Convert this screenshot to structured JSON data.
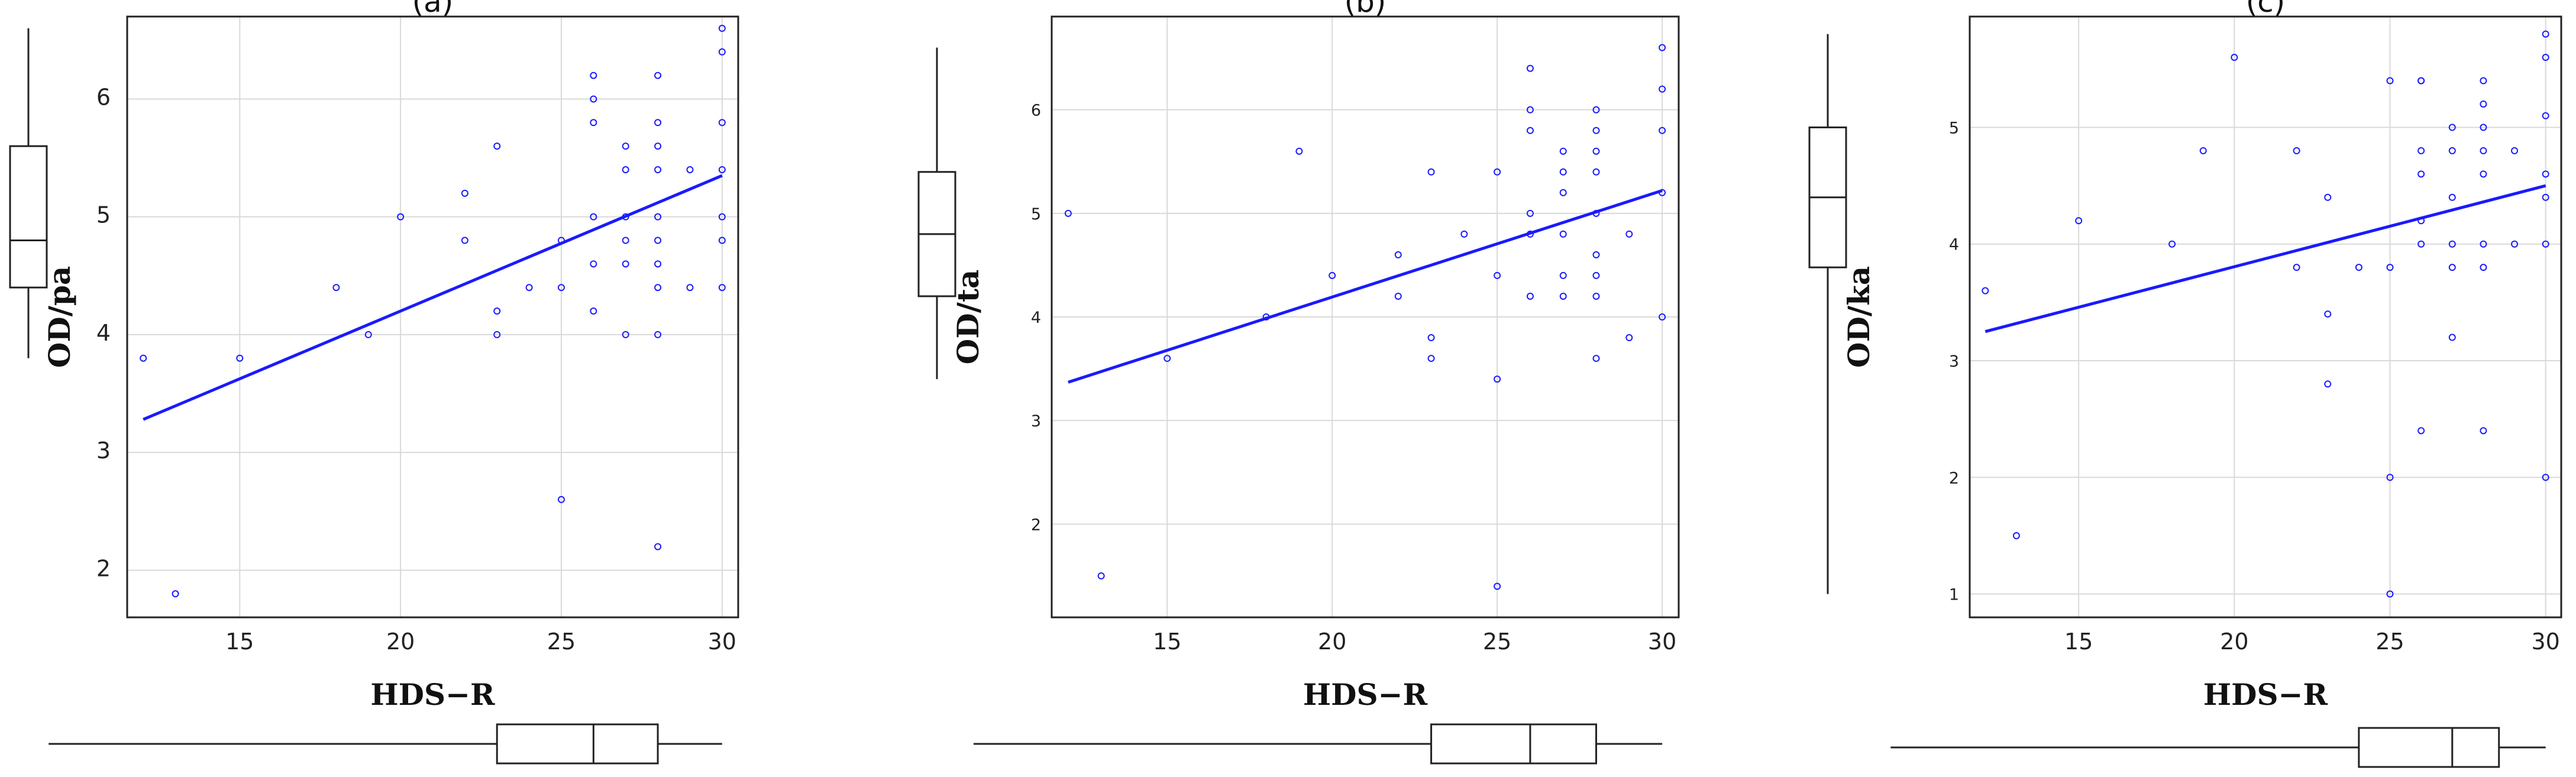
{
  "chart_data": [
    {
      "type": "scatter",
      "title": "(a)",
      "xlabel": "HDS−R",
      "ylabel": "OD/pa",
      "xlim": [
        11.5,
        30.5
      ],
      "ylim": [
        1.6,
        6.7
      ],
      "xticks": [
        15,
        20,
        25,
        30
      ],
      "yticks": [
        2,
        3,
        4,
        5,
        6
      ],
      "points": [
        [
          12,
          3.8
        ],
        [
          13,
          1.8
        ],
        [
          15,
          3.8
        ],
        [
          18,
          4.4
        ],
        [
          19,
          4.0
        ],
        [
          20,
          5.0
        ],
        [
          22,
          5.2
        ],
        [
          22,
          4.8
        ],
        [
          23,
          5.6
        ],
        [
          23,
          4.2
        ],
        [
          23,
          4.0
        ],
        [
          24,
          4.4
        ],
        [
          25,
          4.8
        ],
        [
          25,
          4.4
        ],
        [
          25,
          2.6
        ],
        [
          26,
          6.2
        ],
        [
          26,
          6.0
        ],
        [
          26,
          5.8
        ],
        [
          26,
          5.0
        ],
        [
          26,
          4.6
        ],
        [
          26,
          4.2
        ],
        [
          27,
          5.6
        ],
        [
          27,
          5.4
        ],
        [
          27,
          5.0
        ],
        [
          27,
          4.8
        ],
        [
          27,
          4.6
        ],
        [
          27,
          4.0
        ],
        [
          28,
          6.2
        ],
        [
          28,
          5.8
        ],
        [
          28,
          5.6
        ],
        [
          28,
          5.4
        ],
        [
          28,
          5.0
        ],
        [
          28,
          4.8
        ],
        [
          28,
          4.6
        ],
        [
          28,
          4.4
        ],
        [
          28,
          4.0
        ],
        [
          28,
          2.2
        ],
        [
          29,
          5.4
        ],
        [
          29,
          4.4
        ],
        [
          30,
          6.6
        ],
        [
          30,
          6.4
        ],
        [
          30,
          5.8
        ],
        [
          30,
          5.4
        ],
        [
          30,
          5.0
        ],
        [
          30,
          4.8
        ],
        [
          30,
          4.4
        ]
      ],
      "fit": [
        [
          12,
          3.28
        ],
        [
          30,
          5.35
        ]
      ],
      "x_box": {
        "whisker_low": 12,
        "q1": 23,
        "median": 26,
        "q3": 28,
        "whisker_high": 30
      },
      "y_box": {
        "whisker_low": 3.8,
        "q1": 4.4,
        "median": 4.8,
        "q3": 5.6,
        "whisker_high": 6.6
      }
    },
    {
      "type": "scatter",
      "title": "(b)",
      "xlabel": "HDS−R",
      "ylabel": "OD/ta",
      "xlim": [
        11.5,
        30.5
      ],
      "ylim": [
        1.1,
        6.9
      ],
      "xticks": [
        15,
        20,
        25,
        30
      ],
      "yticks": [
        2,
        3,
        4,
        5,
        6
      ],
      "points": [
        [
          12,
          5.0
        ],
        [
          13,
          1.5
        ],
        [
          15,
          3.6
        ],
        [
          18,
          4.0
        ],
        [
          19,
          5.6
        ],
        [
          20,
          4.4
        ],
        [
          22,
          4.6
        ],
        [
          22,
          4.2
        ],
        [
          23,
          5.4
        ],
        [
          23,
          3.8
        ],
        [
          23,
          3.6
        ],
        [
          24,
          4.8
        ],
        [
          25,
          5.4
        ],
        [
          25,
          4.4
        ],
        [
          25,
          3.4
        ],
        [
          25,
          1.4
        ],
        [
          26,
          6.4
        ],
        [
          26,
          6.0
        ],
        [
          26,
          5.8
        ],
        [
          26,
          5.0
        ],
        [
          26,
          4.8
        ],
        [
          26,
          4.2
        ],
        [
          27,
          5.6
        ],
        [
          27,
          5.4
        ],
        [
          27,
          5.2
        ],
        [
          27,
          4.8
        ],
        [
          27,
          4.4
        ],
        [
          27,
          4.2
        ],
        [
          28,
          6.0
        ],
        [
          28,
          5.8
        ],
        [
          28,
          5.6
        ],
        [
          28,
          5.4
        ],
        [
          28,
          5.0
        ],
        [
          28,
          4.6
        ],
        [
          28,
          4.4
        ],
        [
          28,
          4.2
        ],
        [
          28,
          3.6
        ],
        [
          29,
          4.8
        ],
        [
          29,
          3.8
        ],
        [
          30,
          6.6
        ],
        [
          30,
          6.2
        ],
        [
          30,
          5.8
        ],
        [
          30,
          5.2
        ],
        [
          30,
          4.0
        ]
      ],
      "fit": [
        [
          12,
          3.37
        ],
        [
          30,
          5.22
        ]
      ],
      "x_box": {
        "whisker_low": 12,
        "q1": 23,
        "median": 26,
        "q3": 28,
        "whisker_high": 30
      },
      "y_box": {
        "whisker_low": 3.4,
        "q1": 4.2,
        "median": 4.8,
        "q3": 5.4,
        "whisker_high": 6.6
      }
    },
    {
      "type": "scatter",
      "title": "(c)",
      "xlabel": "HDS−R",
      "ylabel": "OD/ka",
      "xlim": [
        11.5,
        30.5
      ],
      "ylim": [
        0.8,
        5.95
      ],
      "xticks": [
        15,
        20,
        25,
        30
      ],
      "yticks": [
        1,
        2,
        3,
        4,
        5
      ],
      "points": [
        [
          12,
          3.6
        ],
        [
          13,
          1.5
        ],
        [
          15,
          4.2
        ],
        [
          18,
          4.0
        ],
        [
          19,
          4.8
        ],
        [
          20,
          5.6
        ],
        [
          22,
          4.8
        ],
        [
          22,
          3.8
        ],
        [
          23,
          4.4
        ],
        [
          23,
          3.4
        ],
        [
          23,
          2.8
        ],
        [
          24,
          3.8
        ],
        [
          25,
          5.4
        ],
        [
          25,
          3.8
        ],
        [
          25,
          2.0
        ],
        [
          25,
          1.0
        ],
        [
          26,
          5.4
        ],
        [
          26,
          5.4
        ],
        [
          26,
          4.8
        ],
        [
          26,
          4.6
        ],
        [
          26,
          4.2
        ],
        [
          26,
          4.0
        ],
        [
          26,
          2.4
        ],
        [
          27,
          5.0
        ],
        [
          27,
          4.8
        ],
        [
          27,
          4.4
        ],
        [
          27,
          4.0
        ],
        [
          27,
          3.8
        ],
        [
          27,
          3.2
        ],
        [
          28,
          5.4
        ],
        [
          28,
          5.2
        ],
        [
          28,
          5.0
        ],
        [
          28,
          4.8
        ],
        [
          28,
          4.6
        ],
        [
          28,
          4.0
        ],
        [
          28,
          3.8
        ],
        [
          28,
          2.4
        ],
        [
          29,
          4.8
        ],
        [
          29,
          4.0
        ],
        [
          30,
          5.8
        ],
        [
          30,
          5.6
        ],
        [
          30,
          5.1
        ],
        [
          30,
          4.6
        ],
        [
          30,
          4.4
        ],
        [
          30,
          4.0
        ],
        [
          30,
          2.0
        ]
      ],
      "fit": [
        [
          12,
          3.25
        ],
        [
          30,
          4.5
        ]
      ],
      "x_box": {
        "whisker_low": 12,
        "q1": 24,
        "median": 27,
        "q3": 28.5,
        "whisker_high": 30
      },
      "y_box": {
        "whisker_low": 1.0,
        "q1": 3.8,
        "median": 4.4,
        "q3": 5.0,
        "whisker_high": 5.8
      }
    }
  ]
}
